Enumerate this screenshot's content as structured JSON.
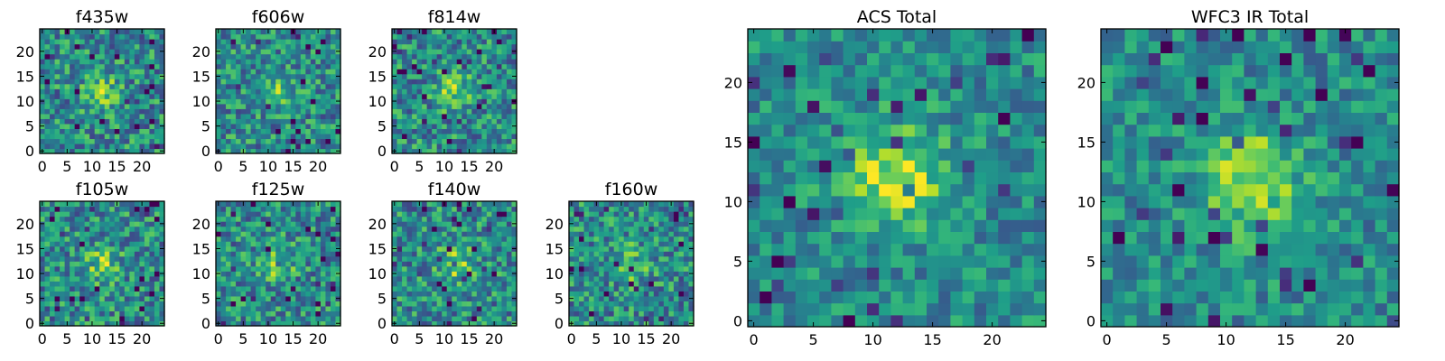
{
  "chart_data": [
    {
      "type": "heatmap",
      "title": "f435w",
      "xticks": [
        0,
        5,
        10,
        15,
        20
      ],
      "yticks": [
        0,
        5,
        10,
        15,
        20
      ],
      "grid_size": [
        25,
        25
      ],
      "peak": [
        12,
        12
      ],
      "colormap": "viridis",
      "grid": false
    },
    {
      "type": "heatmap",
      "title": "f606w",
      "xticks": [
        0,
        5,
        10,
        15,
        20
      ],
      "yticks": [
        0,
        5,
        10,
        15,
        20
      ],
      "grid_size": [
        25,
        25
      ],
      "peak": [
        12,
        12
      ],
      "colormap": "viridis",
      "grid": false
    },
    {
      "type": "heatmap",
      "title": "f814w",
      "xticks": [
        0,
        5,
        10,
        15,
        20
      ],
      "yticks": [
        0,
        5,
        10,
        15,
        20
      ],
      "grid_size": [
        25,
        25
      ],
      "peak": [
        12,
        12
      ],
      "colormap": "viridis",
      "grid": false
    },
    {
      "type": "heatmap",
      "title": "f105w",
      "xticks": [
        0,
        5,
        10,
        15,
        20
      ],
      "yticks": [
        0,
        5,
        10,
        15,
        20
      ],
      "grid_size": [
        25,
        25
      ],
      "peak": [
        12,
        12
      ],
      "colormap": "viridis",
      "grid": false
    },
    {
      "type": "heatmap",
      "title": "f125w",
      "xticks": [
        0,
        5,
        10,
        15,
        20
      ],
      "yticks": [
        0,
        5,
        10,
        15,
        20
      ],
      "grid_size": [
        25,
        25
      ],
      "peak": [
        12,
        12
      ],
      "colormap": "viridis",
      "grid": false
    },
    {
      "type": "heatmap",
      "title": "f140w",
      "xticks": [
        0,
        5,
        10,
        15,
        20
      ],
      "yticks": [
        0,
        5,
        10,
        15,
        20
      ],
      "grid_size": [
        25,
        25
      ],
      "peak": [
        12,
        12
      ],
      "colormap": "viridis",
      "grid": false
    },
    {
      "type": "heatmap",
      "title": "f160w",
      "xticks": [
        0,
        5,
        10,
        15,
        20
      ],
      "yticks": [
        0,
        5,
        10,
        15,
        20
      ],
      "grid_size": [
        25,
        25
      ],
      "peak": [
        12,
        12
      ],
      "colormap": "viridis",
      "grid": false
    },
    {
      "type": "heatmap",
      "title": "ACS Total",
      "xticks": [
        0,
        5,
        10,
        15,
        20
      ],
      "yticks": [
        0,
        5,
        10,
        15,
        20
      ],
      "grid_size": [
        25,
        25
      ],
      "peak": [
        12,
        12
      ],
      "colormap": "viridis",
      "grid": false
    },
    {
      "type": "heatmap",
      "title": "WFC3 IR Total",
      "xticks": [
        0,
        5,
        10,
        15,
        20
      ],
      "yticks": [
        0,
        5,
        10,
        15,
        20
      ],
      "grid_size": [
        25,
        25
      ],
      "peak": [
        12,
        12
      ],
      "colormap": "viridis",
      "grid": false
    }
  ]
}
